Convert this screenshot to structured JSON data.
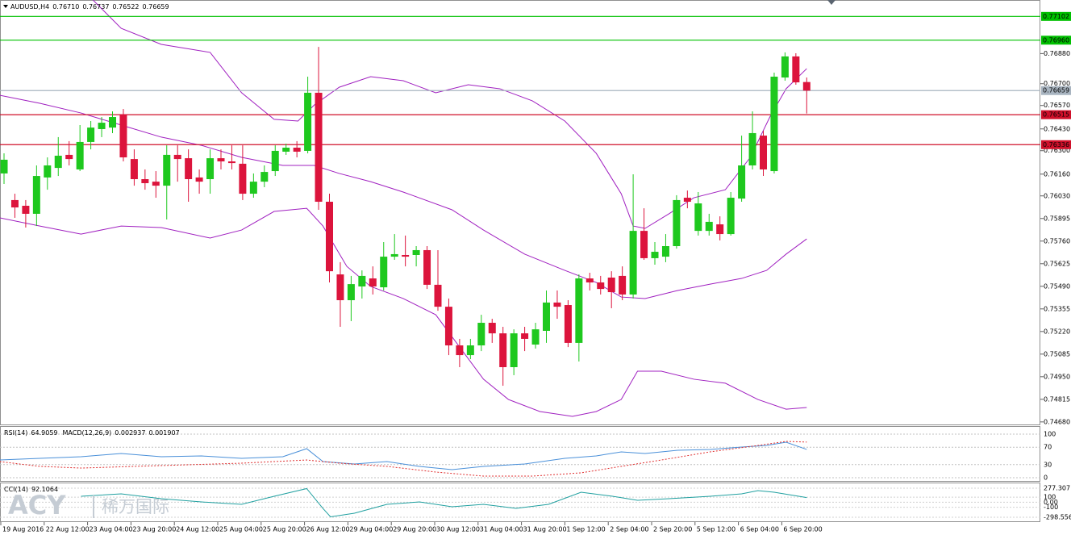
{
  "chart_data": {
    "type": "candlestick",
    "title": "AUDUSD,H4",
    "value_labels": [
      "0.76710",
      "0.76737",
      "0.76522",
      "0.76659"
    ],
    "up_color": "#1ec81e",
    "down_color": "#dc143c",
    "band_color": "#a020c0",
    "ylim": [
      0.7466,
      0.772
    ],
    "yticks": [
      {
        "value": 0.7688,
        "label": "0.76880"
      },
      {
        "value": 0.767,
        "label": "0.76700"
      },
      {
        "value": 0.7657,
        "label": "0.76570"
      },
      {
        "value": 0.7643,
        "label": "0.76430"
      },
      {
        "value": 0.763,
        "label": "0.76300"
      },
      {
        "value": 0.7616,
        "label": "0.76160"
      },
      {
        "value": 0.7603,
        "label": "0.76030"
      },
      {
        "value": 0.75895,
        "label": "0.75895"
      },
      {
        "value": 0.7576,
        "label": "0.75760"
      },
      {
        "value": 0.75625,
        "label": "0.75625"
      },
      {
        "value": 0.7549,
        "label": "0.75490"
      },
      {
        "value": 0.75355,
        "label": "0.75355"
      },
      {
        "value": 0.7522,
        "label": "0.75220"
      },
      {
        "value": 0.75085,
        "label": "0.75085"
      },
      {
        "value": 0.7495,
        "label": "0.74950"
      },
      {
        "value": 0.74815,
        "label": "0.74815"
      },
      {
        "value": 0.7468,
        "label": "0.74680"
      }
    ],
    "levels": [
      {
        "value": 0.77102,
        "label": "0.77102",
        "color": "#00c000",
        "text_color": "#ffffff"
      },
      {
        "value": 0.7696,
        "label": "0.76960",
        "color": "#00c000",
        "text_color": "#ffffff"
      },
      {
        "value": 0.76659,
        "label": "0.76659",
        "color": "#a8b4c0",
        "text_color": "#000000"
      },
      {
        "value": 0.76515,
        "label": "0.76515",
        "color": "#d0102a",
        "text_color": "#ffffff"
      },
      {
        "value": 0.76336,
        "label": "0.76336",
        "color": "#d0102a",
        "text_color": "#ffffff"
      }
    ],
    "categories": [
      "19 Aug 2016",
      null,
      null,
      null,
      "22 Aug 12:00",
      null,
      null,
      null,
      "23 Aug 04:00",
      null,
      null,
      null,
      "23 Aug 20:00",
      null,
      null,
      null,
      "24 Aug 12:00",
      null,
      null,
      null,
      "25 Aug 04:00",
      null,
      null,
      null,
      "25 Aug 20:00",
      null,
      null,
      null,
      "26 Aug 12:00",
      null,
      null,
      null,
      "29 Aug 04:00",
      null,
      null,
      null,
      "29 Aug 20:00",
      null,
      null,
      null,
      "30 Aug 12:00",
      null,
      null,
      null,
      "31 Aug 04:00",
      null,
      null,
      null,
      "31 Aug 20:00",
      null,
      null,
      null,
      "1 Sep 12:00",
      null,
      null,
      null,
      "2 Sep 04:00",
      null,
      null,
      null,
      "2 Sep 20:00",
      null,
      null,
      null,
      "5 Sep 12:00",
      null,
      null,
      null,
      "6 Sep 04:00",
      null,
      null,
      null,
      "6 Sep 20:00",
      null,
      null
    ],
    "ohlc": [
      [
        0.76164,
        0.76284,
        0.76101,
        0.76246
      ],
      [
        0.76005,
        0.76043,
        0.75899,
        0.75961
      ],
      [
        0.75971,
        0.76005,
        0.75841,
        0.75923
      ],
      [
        0.75923,
        0.76212,
        0.7585,
        0.76149
      ],
      [
        0.7614,
        0.7626,
        0.76067,
        0.76212
      ],
      [
        0.76197,
        0.76381,
        0.76149,
        0.7627
      ],
      [
        0.76275,
        0.76357,
        0.76212,
        0.7625
      ],
      [
        0.76188,
        0.76453,
        0.76178,
        0.76352
      ],
      [
        0.76352,
        0.76477,
        0.76308,
        0.76438
      ],
      [
        0.76429,
        0.76501,
        0.76381,
        0.76467
      ],
      [
        0.76438,
        0.76535,
        0.76405,
        0.76501
      ],
      [
        0.76516,
        0.76549,
        0.76236,
        0.7626
      ],
      [
        0.7625,
        0.76308,
        0.76091,
        0.7613
      ],
      [
        0.7613,
        0.76188,
        0.76067,
        0.76106
      ],
      [
        0.76115,
        0.76178,
        0.76019,
        0.76091
      ],
      [
        0.76091,
        0.76332,
        0.75889,
        0.76275
      ],
      [
        0.76275,
        0.76332,
        0.76115,
        0.7625
      ],
      [
        0.76255,
        0.76308,
        0.75995,
        0.7613
      ],
      [
        0.7614,
        0.76188,
        0.76043,
        0.76115
      ],
      [
        0.7613,
        0.76308,
        0.76043,
        0.76255
      ],
      [
        0.76255,
        0.76308,
        0.76188,
        0.76236
      ],
      [
        0.76236,
        0.76332,
        0.76188,
        0.76226
      ],
      [
        0.76222,
        0.76332,
        0.76005,
        0.76043
      ],
      [
        0.76043,
        0.76164,
        0.76019,
        0.76115
      ],
      [
        0.76115,
        0.76212,
        0.76082,
        0.76173
      ],
      [
        0.76178,
        0.76332,
        0.76149,
        0.76299
      ],
      [
        0.76294,
        0.76342,
        0.76275,
        0.76318
      ],
      [
        0.76318,
        0.76357,
        0.7626,
        0.76294
      ],
      [
        0.76299,
        0.76742,
        0.76284,
        0.76646
      ],
      [
        0.76646,
        0.7692,
        0.75947,
        0.75995
      ],
      [
        0.75995,
        0.76043,
        0.75513,
        0.7558
      ],
      [
        0.75561,
        0.75634,
        0.75248,
        0.75407
      ],
      [
        0.75407,
        0.75552,
        0.75282,
        0.75503
      ],
      [
        0.75489,
        0.75585,
        0.75417,
        0.75552
      ],
      [
        0.75537,
        0.75609,
        0.75441,
        0.75489
      ],
      [
        0.75484,
        0.75754,
        0.75465,
        0.75667
      ],
      [
        0.75667,
        0.75802,
        0.75648,
        0.75682
      ],
      [
        0.75677,
        0.75793,
        0.75609,
        0.75667
      ],
      [
        0.75677,
        0.7573,
        0.75609,
        0.75706
      ],
      [
        0.75706,
        0.7573,
        0.75474,
        0.75499
      ],
      [
        0.75499,
        0.75706,
        0.75344,
        0.75368
      ],
      [
        0.75368,
        0.75417,
        0.75079,
        0.75137
      ],
      [
        0.75137,
        0.75176,
        0.75007,
        0.75079
      ],
      [
        0.75079,
        0.75176,
        0.75055,
        0.75137
      ],
      [
        0.75137,
        0.7532,
        0.75103,
        0.75272
      ],
      [
        0.75272,
        0.75296,
        0.75152,
        0.75209
      ],
      [
        0.75209,
        0.75248,
        0.74896,
        0.75007
      ],
      [
        0.75007,
        0.75233,
        0.74959,
        0.75209
      ],
      [
        0.75209,
        0.75248,
        0.75103,
        0.75176
      ],
      [
        0.75142,
        0.75272,
        0.75118,
        0.75233
      ],
      [
        0.75224,
        0.75465,
        0.75152,
        0.75393
      ],
      [
        0.75393,
        0.75465,
        0.75296,
        0.75368
      ],
      [
        0.75378,
        0.75407,
        0.75127,
        0.75152
      ],
      [
        0.75152,
        0.75561,
        0.75041,
        0.75537
      ],
      [
        0.75537,
        0.75571,
        0.75465,
        0.75513
      ],
      [
        0.75513,
        0.75552,
        0.75441,
        0.75474
      ],
      [
        0.75542,
        0.7558,
        0.75359,
        0.75455
      ],
      [
        0.75552,
        0.75609,
        0.75407,
        0.75441
      ],
      [
        0.75441,
        0.76159,
        0.75417,
        0.75821
      ],
      [
        0.75821,
        0.75956,
        0.75648,
        0.75658
      ],
      [
        0.75658,
        0.75754,
        0.75619,
        0.75696
      ],
      [
        0.75667,
        0.75802,
        0.75634,
        0.7573
      ],
      [
        0.7573,
        0.76034,
        0.75715,
        0.76005
      ],
      [
        0.76019,
        0.76062,
        0.75956,
        0.75995
      ],
      [
        0.75821,
        0.76053,
        0.75793,
        0.75985
      ],
      [
        0.75821,
        0.75923,
        0.75793,
        0.75875
      ],
      [
        0.7586,
        0.75908,
        0.75764,
        0.75802
      ],
      [
        0.75802,
        0.76053,
        0.75793,
        0.76019
      ],
      [
        0.76014,
        0.7639,
        0.75995,
        0.76212
      ],
      [
        0.76212,
        0.76535,
        0.76188,
        0.76405
      ],
      [
        0.7639,
        0.76419,
        0.76149,
        0.76188
      ],
      [
        0.76178,
        0.76766,
        0.76164,
        0.76742
      ],
      [
        0.76737,
        0.76887,
        0.76718,
        0.76863
      ],
      [
        0.76863,
        0.76882,
        0.76694,
        0.76708
      ],
      [
        0.7671,
        0.76737,
        0.76522,
        0.76659
      ]
    ],
    "upper_band": {
      "x": [
        8.2,
        10.8,
        14.5,
        19.0,
        21.9,
        24.9,
        27.1,
        28.6,
        30.9,
        33.8,
        36.8,
        39.8,
        42.8,
        45.7,
        48.7,
        51.7,
        54.6,
        56.9,
        58.0,
        59.1,
        61.3,
        63.6,
        66.5,
        68.8,
        70.6,
        72.1,
        74.0
      ],
      "values": [
        0.772,
        0.77031,
        0.76935,
        0.76887,
        0.76646,
        0.76487,
        0.76477,
        0.76573,
        0.76679,
        0.76742,
        0.76718,
        0.76646,
        0.76694,
        0.7667,
        0.76598,
        0.76477,
        0.76284,
        0.76043,
        0.7585,
        0.75836,
        0.75923,
        0.76019,
        0.76067,
        0.7626,
        0.76501,
        0.7667,
        0.7679
      ]
    },
    "middle_band": {
      "x": [
        -0.4,
        3.3,
        7.1,
        10.8,
        14.5,
        18.2,
        21.9,
        25.7,
        28.6,
        30.9,
        33.8,
        36.8,
        41.3,
        44.2,
        48.0,
        51.7,
        54.6,
        56.9,
        59.1,
        62.1,
        65.1,
        68.0,
        70.3,
        72.1,
        74.0
      ],
      "values": [
        0.76631,
        0.76583,
        0.76525,
        0.76453,
        0.76381,
        0.76332,
        0.7626,
        0.76212,
        0.76212,
        0.76164,
        0.76115,
        0.76053,
        0.75947,
        0.75826,
        0.75682,
        0.75585,
        0.75513,
        0.75426,
        0.75417,
        0.75465,
        0.75503,
        0.75537,
        0.75585,
        0.75682,
        0.75773
      ]
    },
    "lower_band": {
      "x": [
        -0.4,
        3.3,
        7.1,
        10.8,
        14.5,
        19.0,
        21.9,
        24.9,
        27.9,
        29.4,
        31.6,
        33.8,
        36.8,
        39.8,
        42.0,
        44.2,
        46.5,
        49.4,
        52.4,
        54.6,
        56.9,
        58.4,
        60.6,
        63.6,
        66.5,
        69.5,
        72.1,
        74.0
      ],
      "values": [
        0.75899,
        0.7585,
        0.75802,
        0.7585,
        0.75841,
        0.75778,
        0.75826,
        0.75937,
        0.75956,
        0.7585,
        0.75609,
        0.75489,
        0.75417,
        0.7532,
        0.75127,
        0.74935,
        0.74814,
        0.74742,
        0.74713,
        0.74742,
        0.74814,
        0.74983,
        0.74983,
        0.74935,
        0.74911,
        0.74814,
        0.74756,
        0.74766
      ]
    },
    "rsi": {
      "label": "RSI(14)",
      "color": "#4a90d9",
      "ylim": [
        0,
        100
      ],
      "yticks": [
        100,
        70,
        30,
        0
      ],
      "x": [
        -0.4,
        3.3,
        7.1,
        10.8,
        14.5,
        18.2,
        21.9,
        25.7,
        27.9,
        29.4,
        32.3,
        35.3,
        38.3,
        41.3,
        44.2,
        48.0,
        51.7,
        54.6,
        56.9,
        59.1,
        62.1,
        65.1,
        68.0,
        70.3,
        72.1,
        74.0
      ],
      "values": [
        40.7,
        44.4,
        48.1,
        55.6,
        48.1,
        50,
        44.4,
        48.1,
        66.7,
        37,
        31.5,
        37,
        25.9,
        18.5,
        25.9,
        31.5,
        44.4,
        50,
        59.3,
        55.6,
        63,
        64.8,
        70.4,
        74.1,
        81.5,
        64.9059
      ]
    },
    "macd": {
      "label": "MACD(12,26,9)",
      "main": 0.002937,
      "color": "#e03030",
      "ylim": [
        -0.003,
        0.003
      ],
      "x": [
        -0.4,
        3.3,
        7.1,
        14.5,
        21.9,
        27.9,
        30.9,
        35.3,
        39.8,
        44.2,
        48.7,
        53.2,
        56.9,
        60.6,
        65.1,
        69.5,
        72.1,
        74.0
      ],
      "signal": [
        -0.00078,
        -0.00144,
        -0.00167,
        -0.00133,
        -0.001,
        -0.00056,
        -0.001,
        -0.00144,
        -0.00222,
        -0.00278,
        -0.00278,
        -0.00233,
        -0.00144,
        -0.00056,
        0.00056,
        0.00144,
        0.002,
        0.001907
      ]
    },
    "cci": {
      "label": "CCI(14)",
      "color": "#20a0a0",
      "ylim": [
        -298.5566,
        277.3071
      ],
      "yticks": [
        277.3071,
        100,
        {
          "value": 0,
          "label": "0.00"
        },
        -100,
        -298.5566
      ],
      "x": [
        7.1,
        10.8,
        14.5,
        18.2,
        21.9,
        24.9,
        27.9,
        29.4,
        30.1,
        32.3,
        35.3,
        38.3,
        41.3,
        44.2,
        47.2,
        50.2,
        53.2,
        56.1,
        58.4,
        61.3,
        65.1,
        68.0,
        69.5,
        71.0,
        74.0
      ],
      "values": [
        117,
        165,
        69,
        5,
        -43,
        117,
        270,
        -123,
        -290,
        -219,
        -43,
        5,
        -91,
        -43,
        -123,
        -43,
        197,
        117,
        37,
        69,
        117,
        165,
        229,
        197,
        92.1064
      ]
    },
    "watermark": "ACY",
    "watermark_sub": "稀万国际"
  }
}
